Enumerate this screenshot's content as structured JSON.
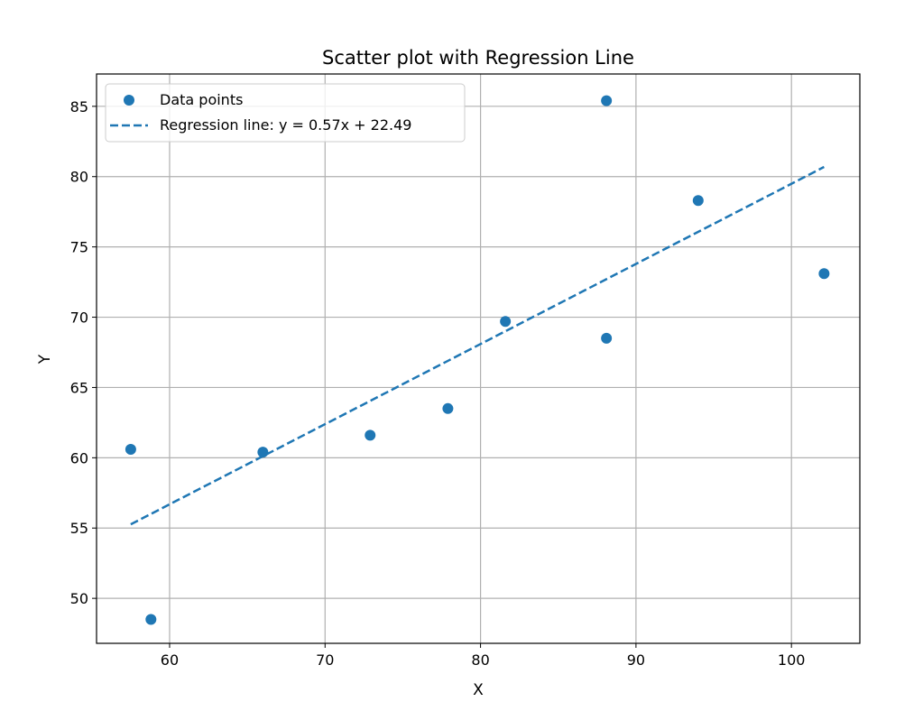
{
  "chart_data": {
    "type": "scatter",
    "title": "Scatter plot with Regression Line",
    "xlabel": "X",
    "ylabel": "Y",
    "xlim": [
      55.3,
      104.4
    ],
    "ylim": [
      46.8,
      87.3
    ],
    "xticks": [
      60,
      70,
      80,
      90,
      100
    ],
    "yticks": [
      50,
      55,
      60,
      65,
      70,
      75,
      80,
      85
    ],
    "grid": true,
    "legend_position": "top-left",
    "series": [
      {
        "name": "Data points",
        "kind": "scatter",
        "color": "#1f77b4",
        "x": [
          57.5,
          58.8,
          66.0,
          72.9,
          77.9,
          81.6,
          88.1,
          88.1,
          94.0,
          102.1
        ],
        "y": [
          60.6,
          48.5,
          60.4,
          61.6,
          63.5,
          69.7,
          85.4,
          68.5,
          78.3,
          73.1
        ]
      },
      {
        "name": "Regression line: y = 0.57x + 22.49",
        "kind": "line",
        "style": "dashed",
        "color": "#1f77b4",
        "slope": 0.57,
        "intercept": 22.49,
        "x_range": [
          57.5,
          102.1
        ]
      }
    ]
  }
}
